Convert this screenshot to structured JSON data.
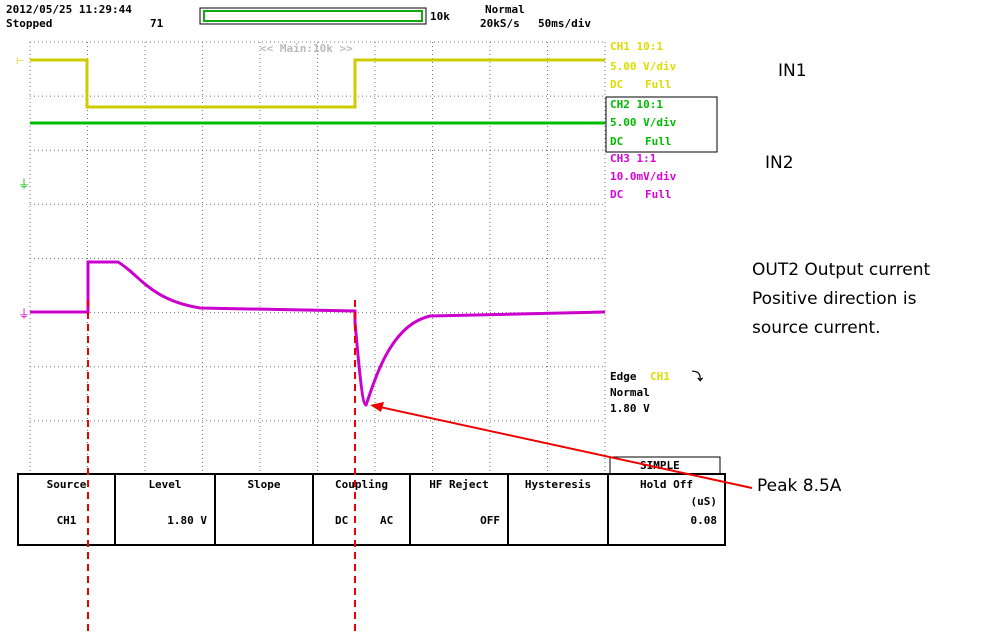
{
  "header": {
    "datetime": "2012/05/25 11:29:44",
    "status": "Stopped",
    "count": "71",
    "record": "10k",
    "mode": "Normal",
    "rate": "20kS/s",
    "timebase": "50ms/div",
    "zoom": "<< Main:10k >>"
  },
  "channels": [
    {
      "name": "CH1 10:1",
      "scale": "5.00 V/div",
      "coupling": "DC",
      "bw": "Full"
    },
    {
      "name": "CH2 10:1",
      "scale": "5.00 V/div",
      "coupling": "DC",
      "bw": "Full"
    },
    {
      "name": "CH3 1:1",
      "scale": "10.0mV/div",
      "coupling": "DC",
      "bw": "Full"
    }
  ],
  "trigger": {
    "type": "Edge",
    "source": "CH1",
    "mode": "Normal",
    "level": "1.80 V",
    "menu": "SIMPLE"
  },
  "menu": [
    {
      "label": "Source",
      "value": "CH1"
    },
    {
      "label": "Level",
      "value": "1.80 V"
    },
    {
      "label": "Slope"
    },
    {
      "label": "Coupling",
      "options": [
        "DC",
        "AC"
      ]
    },
    {
      "label": "HF Reject",
      "value": "OFF"
    },
    {
      "label": "Hysteresis"
    },
    {
      "label": "Hold Off",
      "unit": "(uS)",
      "value": "0.08"
    }
  ],
  "annotations": {
    "in1": "IN1",
    "in2": "IN2",
    "out2": [
      "OUT2 Output current",
      "Positive direction is",
      "source current."
    ],
    "peak": "Peak 8.5A"
  }
}
